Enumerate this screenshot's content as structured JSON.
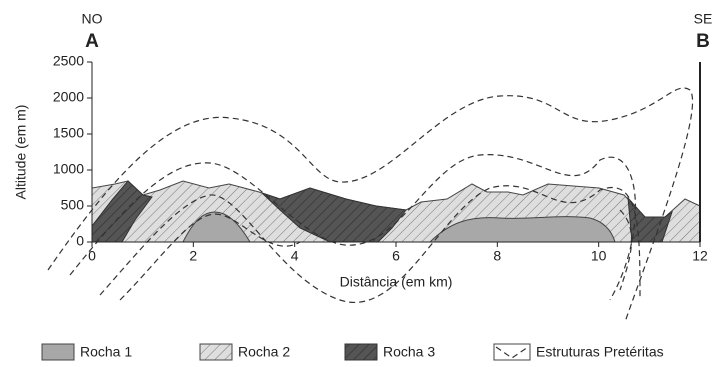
{
  "labels": {
    "left_direction": "NO",
    "left_point": "A",
    "right_direction": "SE",
    "right_point": "B"
  },
  "axes": {
    "y_title": "Altitude (em m)",
    "x_title": "Distância (em km)",
    "ylim": [
      0,
      2500
    ],
    "yticks": [
      0,
      500,
      1000,
      1500,
      2000,
      2500
    ],
    "xlim": [
      0,
      12
    ],
    "xticks": [
      0,
      2,
      4,
      6,
      8,
      10,
      12
    ]
  },
  "legend": [
    {
      "label": "Rocha 1"
    },
    {
      "label": "Rocha 2"
    },
    {
      "label": "Rocha 3"
    },
    {
      "label": "Estruturas Pretéritas"
    }
  ]
}
